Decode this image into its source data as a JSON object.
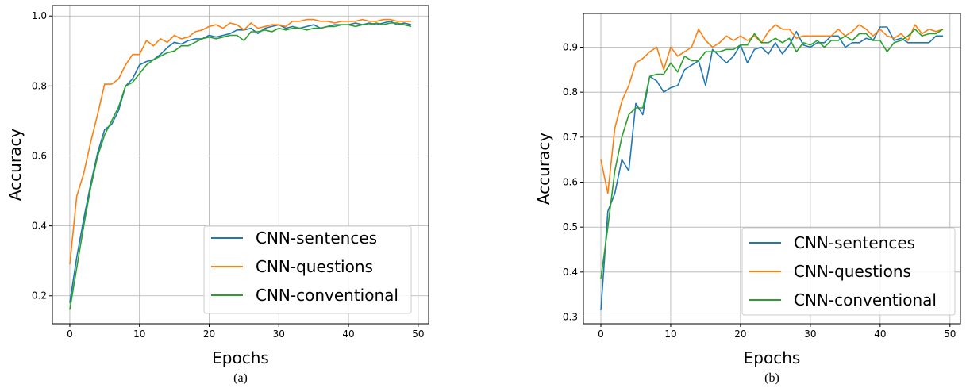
{
  "chart_data": [
    {
      "type": "line",
      "caption": "(a)",
      "xlabel": "Epochs",
      "ylabel": "Accuracy",
      "xlim": [
        -2.5,
        51.5
      ],
      "ylim": [
        0.12,
        1.03
      ],
      "xticks": [
        "0",
        "10",
        "20",
        "30",
        "40",
        "50"
      ],
      "xtick_values": [
        0,
        10,
        20,
        30,
        40,
        50
      ],
      "yticks": [
        "0.2",
        "0.4",
        "0.6",
        "0.8",
        "1.0"
      ],
      "ytick_values": [
        0.2,
        0.4,
        0.6,
        0.8,
        1.0
      ],
      "grid": true,
      "legend_position": "lower-right",
      "series": [
        {
          "name": "CNN-sentences",
          "color": "#1f77b4",
          "x": [
            0,
            1,
            2,
            3,
            4,
            5,
            6,
            7,
            8,
            9,
            10,
            11,
            12,
            13,
            14,
            15,
            16,
            17,
            18,
            19,
            20,
            21,
            22,
            23,
            24,
            25,
            26,
            27,
            28,
            29,
            30,
            31,
            32,
            33,
            34,
            35,
            36,
            37,
            38,
            39,
            40,
            41,
            42,
            43,
            44,
            45,
            46,
            47,
            48,
            49
          ],
          "values": [
            0.18,
            0.31,
            0.42,
            0.52,
            0.61,
            0.675,
            0.69,
            0.73,
            0.8,
            0.82,
            0.86,
            0.87,
            0.875,
            0.89,
            0.91,
            0.925,
            0.92,
            0.93,
            0.935,
            0.935,
            0.945,
            0.94,
            0.945,
            0.95,
            0.96,
            0.96,
            0.965,
            0.95,
            0.965,
            0.97,
            0.975,
            0.965,
            0.97,
            0.965,
            0.97,
            0.975,
            0.965,
            0.97,
            0.975,
            0.975,
            0.975,
            0.98,
            0.975,
            0.98,
            0.975,
            0.98,
            0.985,
            0.975,
            0.98,
            0.975
          ]
        },
        {
          "name": "CNN-questions",
          "color": "#ff7f0e",
          "x": [
            0,
            1,
            2,
            3,
            4,
            5,
            6,
            7,
            8,
            9,
            10,
            11,
            12,
            13,
            14,
            15,
            16,
            17,
            18,
            19,
            20,
            21,
            22,
            23,
            24,
            25,
            26,
            27,
            28,
            29,
            30,
            31,
            32,
            33,
            34,
            35,
            36,
            37,
            38,
            39,
            40,
            41,
            42,
            43,
            44,
            45,
            46,
            47,
            48,
            49
          ],
          "values": [
            0.29,
            0.485,
            0.55,
            0.64,
            0.72,
            0.805,
            0.805,
            0.82,
            0.86,
            0.89,
            0.89,
            0.93,
            0.915,
            0.935,
            0.925,
            0.945,
            0.935,
            0.94,
            0.955,
            0.96,
            0.97,
            0.975,
            0.965,
            0.98,
            0.975,
            0.96,
            0.98,
            0.965,
            0.97,
            0.975,
            0.975,
            0.97,
            0.985,
            0.985,
            0.99,
            0.99,
            0.985,
            0.985,
            0.98,
            0.985,
            0.985,
            0.985,
            0.99,
            0.985,
            0.985,
            0.99,
            0.99,
            0.985,
            0.985,
            0.985
          ]
        },
        {
          "name": "CNN-conventional",
          "color": "#2ca02c",
          "x": [
            0,
            1,
            2,
            3,
            4,
            5,
            6,
            7,
            8,
            9,
            10,
            11,
            12,
            13,
            14,
            15,
            16,
            17,
            18,
            19,
            20,
            21,
            22,
            23,
            24,
            25,
            26,
            27,
            28,
            29,
            30,
            31,
            32,
            33,
            34,
            35,
            36,
            37,
            38,
            39,
            40,
            41,
            42,
            43,
            44,
            45,
            46,
            47,
            48,
            49
          ],
          "values": [
            0.16,
            0.28,
            0.4,
            0.51,
            0.6,
            0.66,
            0.7,
            0.74,
            0.8,
            0.81,
            0.835,
            0.86,
            0.875,
            0.885,
            0.895,
            0.9,
            0.915,
            0.915,
            0.925,
            0.935,
            0.94,
            0.935,
            0.94,
            0.945,
            0.945,
            0.93,
            0.955,
            0.955,
            0.96,
            0.955,
            0.965,
            0.96,
            0.965,
            0.965,
            0.96,
            0.965,
            0.965,
            0.97,
            0.97,
            0.975,
            0.975,
            0.97,
            0.975,
            0.975,
            0.98,
            0.975,
            0.98,
            0.98,
            0.975,
            0.97
          ]
        }
      ]
    },
    {
      "type": "line",
      "caption": "(b)",
      "xlabel": "Epochs",
      "ylabel": "Accuracy",
      "xlim": [
        -2.5,
        51.5
      ],
      "ylim": [
        0.285,
        0.975
      ],
      "xticks": [
        "0",
        "10",
        "20",
        "30",
        "40",
        "50"
      ],
      "xtick_values": [
        0,
        10,
        20,
        30,
        40,
        50
      ],
      "yticks": [
        "0.3",
        "0.4",
        "0.5",
        "0.6",
        "0.7",
        "0.8",
        "0.9"
      ],
      "ytick_values": [
        0.3,
        0.4,
        0.5,
        0.6,
        0.7,
        0.8,
        0.9
      ],
      "grid": true,
      "legend_position": "lower-right",
      "series": [
        {
          "name": "CNN-sentences",
          "color": "#1f77b4",
          "x": [
            0,
            1,
            2,
            3,
            4,
            5,
            6,
            7,
            8,
            9,
            10,
            11,
            12,
            13,
            14,
            15,
            16,
            17,
            18,
            19,
            20,
            21,
            22,
            23,
            24,
            25,
            26,
            27,
            28,
            29,
            30,
            31,
            32,
            33,
            34,
            35,
            36,
            37,
            38,
            39,
            40,
            41,
            42,
            43,
            44,
            45,
            46,
            47,
            48,
            49
          ],
          "values": [
            0.315,
            0.535,
            0.575,
            0.65,
            0.625,
            0.775,
            0.75,
            0.835,
            0.825,
            0.8,
            0.81,
            0.815,
            0.85,
            0.86,
            0.87,
            0.815,
            0.895,
            0.88,
            0.865,
            0.88,
            0.905,
            0.865,
            0.895,
            0.9,
            0.885,
            0.91,
            0.885,
            0.905,
            0.935,
            0.905,
            0.9,
            0.91,
            0.91,
            0.925,
            0.925,
            0.9,
            0.91,
            0.91,
            0.92,
            0.915,
            0.945,
            0.945,
            0.915,
            0.92,
            0.91,
            0.91,
            0.91,
            0.91,
            0.925,
            0.925
          ]
        },
        {
          "name": "CNN-questions",
          "color": "#ff7f0e",
          "x": [
            0,
            1,
            2,
            3,
            4,
            5,
            6,
            7,
            8,
            9,
            10,
            11,
            12,
            13,
            14,
            15,
            16,
            17,
            18,
            19,
            20,
            21,
            22,
            23,
            24,
            25,
            26,
            27,
            28,
            29,
            30,
            31,
            32,
            33,
            34,
            35,
            36,
            37,
            38,
            39,
            40,
            41,
            42,
            43,
            44,
            45,
            46,
            47,
            48,
            49
          ],
          "values": [
            0.65,
            0.575,
            0.72,
            0.78,
            0.815,
            0.865,
            0.875,
            0.89,
            0.9,
            0.85,
            0.9,
            0.88,
            0.89,
            0.9,
            0.94,
            0.915,
            0.9,
            0.91,
            0.925,
            0.915,
            0.925,
            0.915,
            0.925,
            0.91,
            0.935,
            0.95,
            0.94,
            0.94,
            0.92,
            0.925,
            0.925,
            0.925,
            0.925,
            0.925,
            0.94,
            0.925,
            0.935,
            0.95,
            0.94,
            0.925,
            0.94,
            0.925,
            0.92,
            0.93,
            0.915,
            0.95,
            0.93,
            0.94,
            0.935,
            0.94
          ]
        },
        {
          "name": "CNN-conventional",
          "color": "#2ca02c",
          "x": [
            0,
            1,
            2,
            3,
            4,
            5,
            6,
            7,
            8,
            9,
            10,
            11,
            12,
            13,
            14,
            15,
            16,
            17,
            18,
            19,
            20,
            21,
            22,
            23,
            24,
            25,
            26,
            27,
            28,
            29,
            30,
            31,
            32,
            33,
            34,
            35,
            36,
            37,
            38,
            39,
            40,
            41,
            42,
            43,
            44,
            45,
            46,
            47,
            48,
            49
          ],
          "values": [
            0.385,
            0.5,
            0.625,
            0.7,
            0.75,
            0.765,
            0.765,
            0.835,
            0.84,
            0.84,
            0.865,
            0.845,
            0.88,
            0.87,
            0.87,
            0.89,
            0.89,
            0.89,
            0.895,
            0.895,
            0.905,
            0.905,
            0.93,
            0.91,
            0.91,
            0.92,
            0.91,
            0.92,
            0.89,
            0.91,
            0.905,
            0.915,
            0.9,
            0.915,
            0.915,
            0.925,
            0.915,
            0.93,
            0.93,
            0.915,
            0.915,
            0.89,
            0.91,
            0.915,
            0.925,
            0.94,
            0.925,
            0.93,
            0.93,
            0.94
          ]
        }
      ]
    }
  ]
}
